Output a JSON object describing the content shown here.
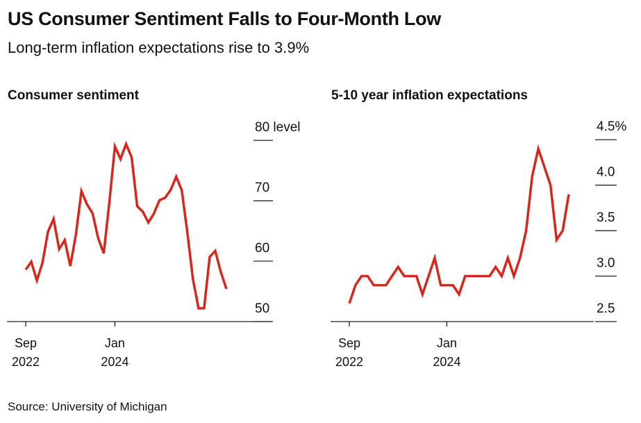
{
  "title": "US Consumer Sentiment Falls to Four-Month Low",
  "subtitle": "Long-term inflation expectations rise to 3.9%",
  "source": "Source: University of Michigan",
  "chart_data": [
    {
      "type": "line",
      "title": "Consumer sentiment",
      "x": [
        "2022-09",
        "2022-10",
        "2022-11",
        "2022-12",
        "2023-01",
        "2023-02",
        "2023-03",
        "2023-04",
        "2023-05",
        "2023-06",
        "2023-07",
        "2023-08",
        "2023-09",
        "2023-10",
        "2023-11",
        "2023-12",
        "2024-01",
        "2024-02",
        "2024-03",
        "2024-04",
        "2024-05",
        "2024-06",
        "2024-07",
        "2024-08",
        "2024-09",
        "2024-10",
        "2024-11",
        "2024-12",
        "2025-01",
        "2025-02",
        "2025-03",
        "2025-04",
        "2025-05",
        "2025-06",
        "2025-07",
        "2025-08",
        "2025-09"
      ],
      "series": [
        {
          "color": "#d9261c",
          "values": [
            58.6,
            59.9,
            56.8,
            59.7,
            64.9,
            67.0,
            62.0,
            63.5,
            59.2,
            64.4,
            71.6,
            69.4,
            67.9,
            63.8,
            61.3,
            69.7,
            79.0,
            76.9,
            79.4,
            77.2,
            69.1,
            68.2,
            66.4,
            67.9,
            70.1,
            70.5,
            71.8,
            74.0,
            71.7,
            64.7,
            57.0,
            52.2,
            52.2,
            60.7,
            61.7,
            58.2,
            55.4
          ]
        }
      ],
      "ylim": [
        50,
        83
      ],
      "yticks": [
        50,
        60,
        70,
        {
          "value": 80,
          "label": "80 level"
        }
      ],
      "xticks": [
        {
          "value": "2022-09",
          "label": "Sep 2022"
        },
        {
          "value": "2024-01",
          "label": "Jan 2024"
        }
      ]
    },
    {
      "type": "line",
      "title": "5-10 year inflation expectations",
      "x": [
        "2022-09",
        "2022-10",
        "2022-11",
        "2022-12",
        "2023-01",
        "2023-02",
        "2023-03",
        "2023-04",
        "2023-05",
        "2023-06",
        "2023-07",
        "2023-08",
        "2023-09",
        "2023-10",
        "2023-11",
        "2023-12",
        "2024-01",
        "2024-02",
        "2024-03",
        "2024-04",
        "2024-05",
        "2024-06",
        "2024-07",
        "2024-08",
        "2024-09",
        "2024-10",
        "2024-11",
        "2024-12",
        "2025-01",
        "2025-02",
        "2025-03",
        "2025-04",
        "2025-05",
        "2025-06",
        "2025-07",
        "2025-08",
        "2025-09"
      ],
      "series": [
        {
          "color": "#d9261c",
          "values": [
            2.7,
            2.9,
            3.0,
            3.0,
            2.9,
            2.9,
            2.9,
            3.0,
            3.1,
            3.0,
            3.0,
            3.0,
            2.8,
            3.0,
            3.2,
            2.9,
            2.9,
            2.9,
            2.8,
            3.0,
            3.0,
            3.0,
            3.0,
            3.0,
            3.1,
            3.0,
            3.2,
            3.0,
            3.2,
            3.5,
            4.1,
            4.4,
            4.2,
            4.0,
            3.4,
            3.5,
            3.9
          ]
        }
      ],
      "ylim": [
        2.5,
        4.6
      ],
      "yticks": [
        2.5,
        {
          "value": 3,
          "label": "3.0"
        },
        3.5,
        {
          "value": 4,
          "label": "4.0"
        },
        {
          "value": 4.5,
          "label": "4.5%"
        }
      ],
      "xticks": [
        {
          "value": "2022-09",
          "label": "Sep 2022"
        },
        {
          "value": "2024-01",
          "label": "Jan 2024"
        }
      ]
    }
  ]
}
